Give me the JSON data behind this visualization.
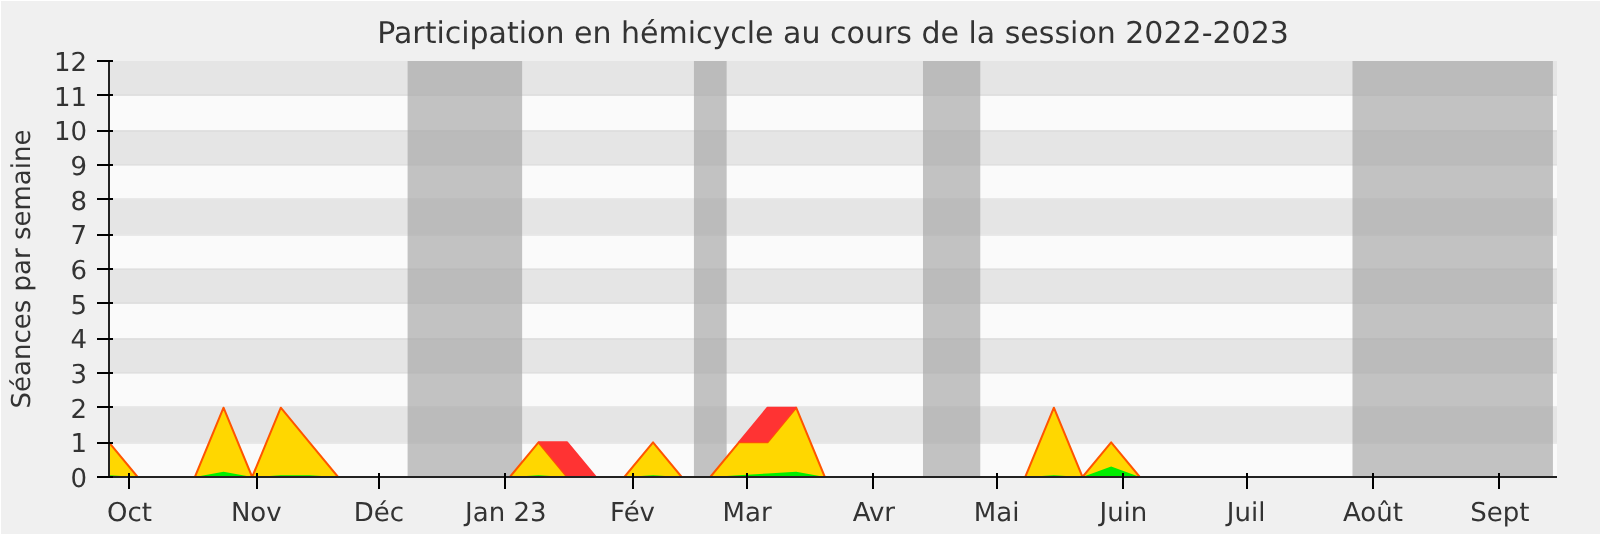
{
  "chart_data": {
    "type": "area",
    "stacked": true,
    "title": "Participation en hémicycle au cours de la session 2022-2023",
    "ylabel": "Séances par semaine",
    "x": [
      "2022-09-26",
      "2022-10-03",
      "2022-10-10",
      "2022-10-17",
      "2022-10-24",
      "2022-10-31",
      "2022-11-07",
      "2022-11-14",
      "2022-11-21",
      "2022-11-28",
      "2022-12-05",
      "2022-12-12",
      "2022-12-19",
      "2022-12-26",
      "2023-01-02",
      "2023-01-09",
      "2023-01-16",
      "2023-01-23",
      "2023-01-30",
      "2023-02-06",
      "2023-02-13",
      "2023-02-20",
      "2023-02-27",
      "2023-03-06",
      "2023-03-13",
      "2023-03-20",
      "2023-03-27",
      "2023-04-03",
      "2023-04-10",
      "2023-04-17",
      "2023-04-24",
      "2023-05-01",
      "2023-05-08",
      "2023-05-15",
      "2023-05-22",
      "2023-05-29",
      "2023-06-05",
      "2023-06-12",
      "2023-06-19",
      "2023-06-26",
      "2023-07-03",
      "2023-07-10",
      "2023-07-17",
      "2023-07-24",
      "2023-07-31",
      "2023-08-07",
      "2023-08-14",
      "2023-08-21",
      "2023-08-28",
      "2023-09-04",
      "2023-09-11"
    ],
    "series": [
      {
        "color": "#00ee00",
        "values": [
          0.05,
          0,
          0,
          0,
          0.15,
          0,
          0.05,
          0.05,
          0,
          0,
          0,
          0,
          0,
          0,
          0,
          0.05,
          0,
          0,
          0,
          0.05,
          0,
          0,
          0.05,
          0.1,
          0.15,
          0,
          0,
          0,
          0,
          0,
          0,
          0,
          0,
          0.05,
          0,
          0.3,
          0,
          0,
          0,
          0,
          0,
          0,
          0,
          0,
          0,
          0,
          0,
          0,
          0,
          0,
          0
        ]
      },
      {
        "color": "#ffd700",
        "values": [
          0.95,
          0,
          0,
          0,
          1.85,
          0,
          1.95,
          0.95,
          0,
          0,
          0,
          0,
          0,
          0,
          0,
          0.95,
          0,
          0,
          0,
          0.95,
          0,
          0,
          0.95,
          0.9,
          1.85,
          0,
          0,
          0,
          0,
          0,
          0,
          0,
          0,
          1.95,
          0,
          0.7,
          0,
          0,
          0,
          0,
          0,
          0,
          0,
          0,
          0,
          0,
          0,
          0,
          0,
          0,
          0
        ]
      },
      {
        "color": "#ff3333",
        "values": [
          null,
          null,
          null,
          null,
          null,
          null,
          null,
          null,
          null,
          null,
          null,
          null,
          null,
          null,
          null,
          0,
          1,
          0,
          null,
          null,
          null,
          null,
          0,
          1,
          0,
          null,
          null,
          null,
          null,
          null,
          null,
          null,
          null,
          null,
          null,
          null,
          null,
          null,
          null,
          null,
          null,
          null,
          null,
          null,
          null,
          null,
          null,
          null,
          null,
          null,
          null
        ]
      }
    ],
    "xlim": [
      "2022-09-26",
      "2023-09-15"
    ],
    "ylim": [
      0,
      12
    ],
    "yticks": [
      0,
      1,
      2,
      3,
      4,
      5,
      6,
      7,
      8,
      9,
      10,
      11,
      12
    ],
    "xticks": [
      {
        "value": "2022-10-01",
        "label": "Oct"
      },
      {
        "value": "2022-11-01",
        "label": "Nov"
      },
      {
        "value": "2022-12-01",
        "label": "Déc"
      },
      {
        "value": "2023-01-01",
        "label": "Jan 23"
      },
      {
        "value": "2023-02-01",
        "label": "Fév"
      },
      {
        "value": "2023-03-01",
        "label": "Mar"
      },
      {
        "value": "2023-04-01",
        "label": "Avr"
      },
      {
        "value": "2023-05-01",
        "label": "Mai"
      },
      {
        "value": "2023-06-01",
        "label": "Juin"
      },
      {
        "value": "2023-07-01",
        "label": "Juil"
      },
      {
        "value": "2023-08-01",
        "label": "Août"
      },
      {
        "value": "2023-09-01",
        "label": "Sept"
      }
    ],
    "grid": "y",
    "bands": [
      {
        "axis": "x",
        "from": "2022-12-08",
        "to": "2023-01-05",
        "color": "#aaaaaa"
      },
      {
        "axis": "x",
        "from": "2023-02-16",
        "to": "2023-02-24",
        "color": "#aaaaaa"
      },
      {
        "axis": "x",
        "from": "2023-04-13",
        "to": "2023-04-27",
        "color": "#aaaaaa"
      },
      {
        "axis": "x",
        "from": "2023-07-27",
        "to": "2023-09-14",
        "color": "#aaaaaa"
      }
    ]
  }
}
